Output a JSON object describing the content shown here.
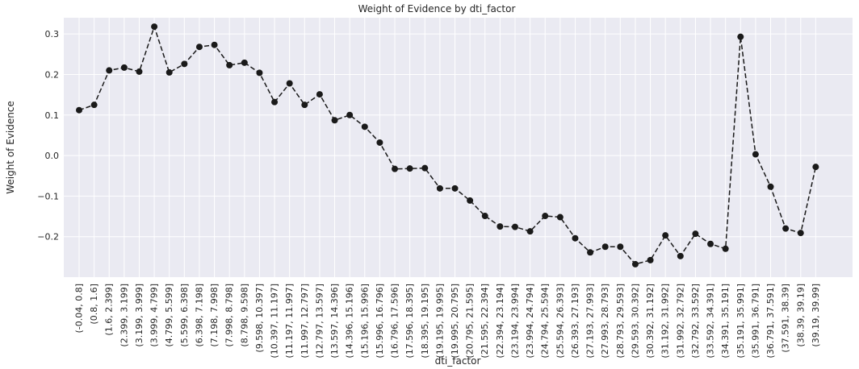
{
  "chart_data": {
    "type": "line",
    "title": "Weight of Evidence by dti_factor",
    "xlabel": "dti_factor",
    "ylabel": "Weight of Evidence",
    "ylim": [
      -0.3,
      0.34
    ],
    "yticks": [
      -0.2,
      -0.1,
      0.0,
      0.1,
      0.2,
      0.3
    ],
    "ytick_labels": [
      "−0.2",
      "−0.1",
      "0.0",
      "0.1",
      "0.2",
      "0.3"
    ],
    "grid": true,
    "colors": {
      "background": "#eaeaf2",
      "grid": "#ffffff",
      "line": "#1a1a1a"
    },
    "categories": [
      "(-0.04, 0.8]",
      "(0.8, 1.6]",
      "(1.6, 2.399]",
      "(2.399, 3.199]",
      "(3.199, 3.999]",
      "(3.999, 4.799]",
      "(4.799, 5.599]",
      "(5.599, 6.398]",
      "(6.398, 7.198]",
      "(7.198, 7.998]",
      "(7.998, 8.798]",
      "(8.798, 9.598]",
      "(9.598, 10.397]",
      "(10.397, 11.197]",
      "(11.197, 11.997]",
      "(11.997, 12.797]",
      "(12.797, 13.597]",
      "(13.597, 14.396]",
      "(14.396, 15.196]",
      "(15.196, 15.996]",
      "(15.996, 16.796]",
      "(16.796, 17.596]",
      "(17.596, 18.395]",
      "(18.395, 19.195]",
      "(19.195, 19.995]",
      "(19.995, 20.795]",
      "(20.795, 21.595]",
      "(21.595, 22.394]",
      "(22.394, 23.194]",
      "(23.194, 23.994]",
      "(23.994, 24.794]",
      "(24.794, 25.594]",
      "(25.594, 26.393]",
      "(26.393, 27.193]",
      "(27.193, 27.993]",
      "(27.993, 28.793]",
      "(28.793, 29.593]",
      "(29.593, 30.392]",
      "(30.392, 31.192]",
      "(31.192, 31.992]",
      "(31.992, 32.792]",
      "(32.792, 33.592]",
      "(33.592, 34.391]",
      "(34.391, 35.191]",
      "(35.191, 35.991]",
      "(35.991, 36.791]",
      "(36.791, 37.591]",
      "(37.591, 38.39]",
      "(38.39, 39.19]",
      "(39.19, 39.99]"
    ],
    "values": [
      0.112,
      0.125,
      0.21,
      0.217,
      0.207,
      0.318,
      0.205,
      0.226,
      0.268,
      0.273,
      0.223,
      0.229,
      0.204,
      0.132,
      0.178,
      0.125,
      0.151,
      0.087,
      0.1,
      0.071,
      0.032,
      -0.033,
      -0.032,
      -0.031,
      -0.081,
      -0.081,
      -0.111,
      -0.149,
      -0.175,
      -0.176,
      -0.187,
      -0.149,
      -0.152,
      -0.204,
      -0.239,
      -0.225,
      -0.225,
      -0.268,
      -0.258,
      -0.197,
      -0.248,
      -0.193,
      -0.218,
      -0.23,
      0.293,
      0.003,
      -0.077,
      -0.18,
      -0.191,
      -0.028
    ]
  }
}
